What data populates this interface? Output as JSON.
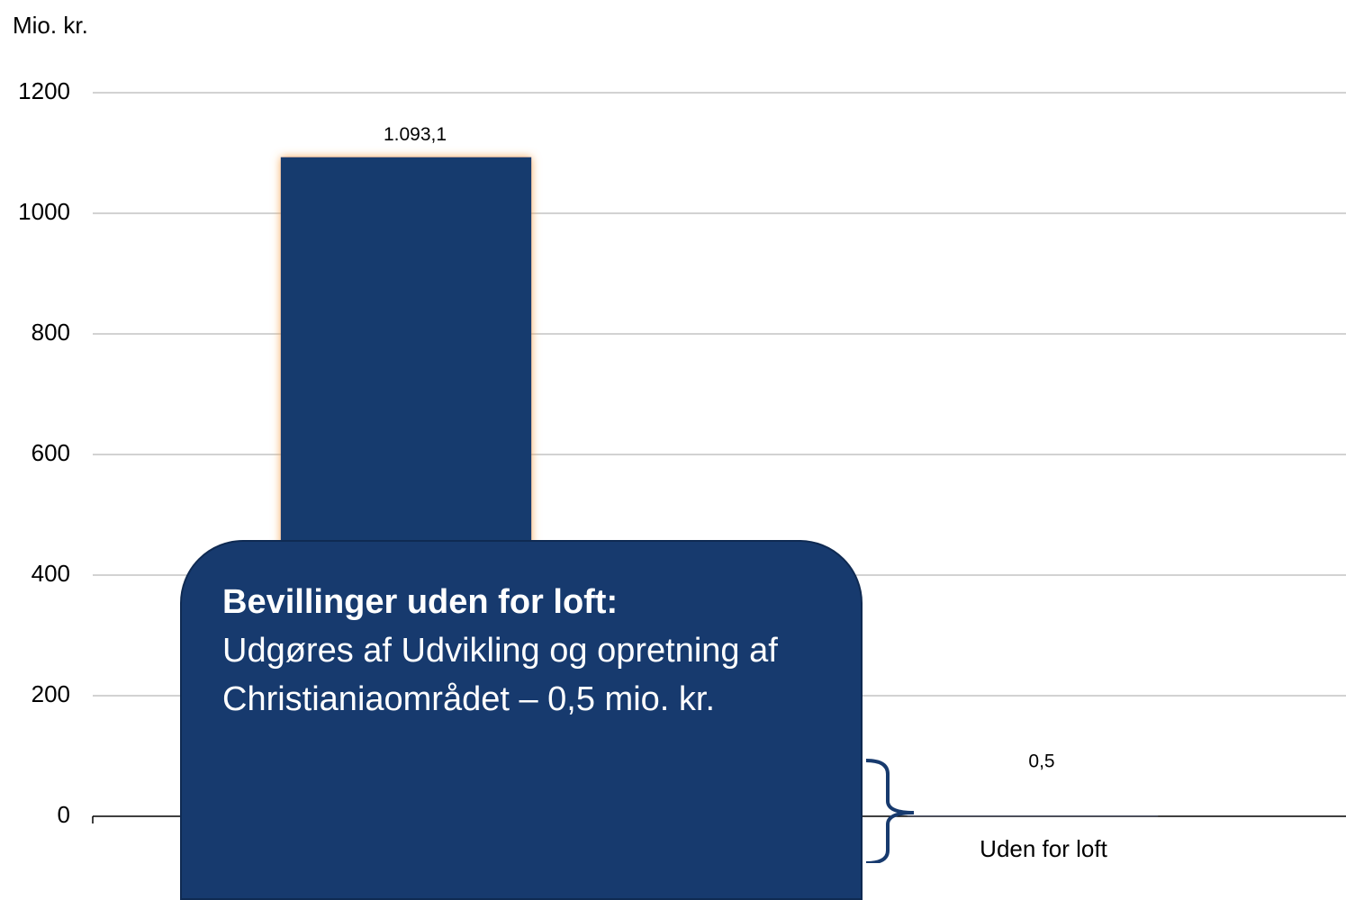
{
  "chart_data": {
    "type": "bar",
    "y_label": "Mio. kr.",
    "categories": [
      null,
      "Uden for loft"
    ],
    "values": [
      1093.1,
      0.5
    ],
    "value_labels": [
      "1.093,1",
      "0,5"
    ],
    "color": "#173a6e",
    "ylim": [
      0,
      1200
    ],
    "yticks": [
      0,
      200,
      400,
      600,
      800,
      1000,
      1200
    ],
    "grid": true,
    "annotation": {
      "title": "Bevillinger uden for loft:",
      "text": "Udgøres af Udvikling og opretning af Christianiaområdet – 0,5 mio. kr."
    }
  }
}
